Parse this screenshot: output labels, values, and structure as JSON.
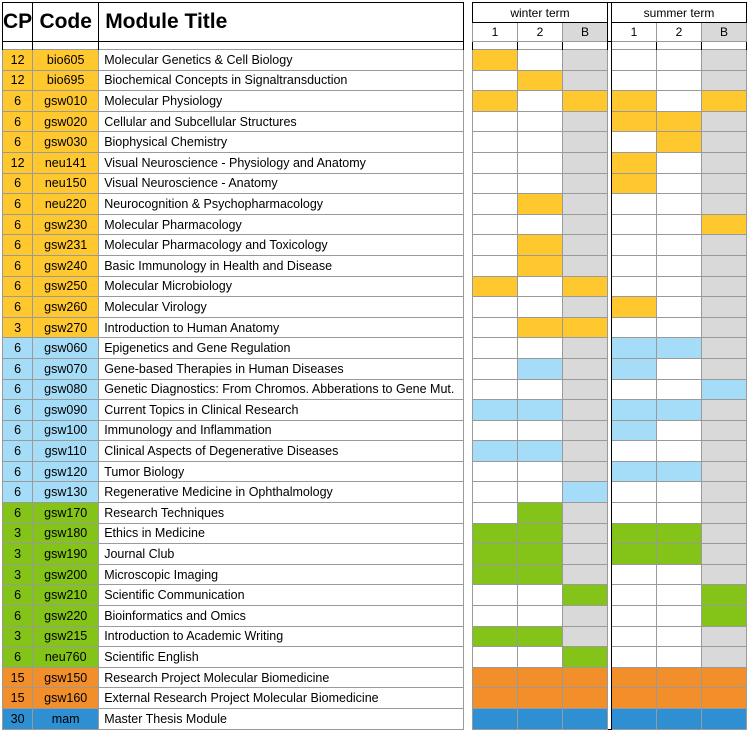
{
  "headers": {
    "cp": "CP",
    "code": "Code",
    "title": "Module Title"
  },
  "terms": {
    "winter": "winter term",
    "summer": "summer term",
    "cols": [
      "1",
      "2",
      "B"
    ]
  },
  "colors": {
    "yellow": "#ffc82f",
    "blue": "#a5dcf7",
    "green": "#84c318",
    "orange": "#f28f2b",
    "darkblue": "#2f8fd3",
    "grey": "#d9d9d9"
  },
  "modules": [
    {
      "cp": "12",
      "code": "bio605",
      "title": "Molecular Genetics & Cell Biology",
      "group": "yellow",
      "schedule": [
        1,
        0,
        0,
        0,
        0,
        0
      ]
    },
    {
      "cp": "12",
      "code": "bio695",
      "title": "Biochemical Concepts in Signaltransduction",
      "group": "yellow",
      "schedule": [
        0,
        1,
        0,
        0,
        0,
        0
      ]
    },
    {
      "cp": "6",
      "code": "gsw010",
      "title": "Molecular Physiology",
      "group": "yellow",
      "schedule": [
        1,
        0,
        1,
        1,
        0,
        1
      ]
    },
    {
      "cp": "6",
      "code": "gsw020",
      "title": "Cellular and Subcellular Structures",
      "group": "yellow",
      "schedule": [
        0,
        0,
        0,
        1,
        1,
        0
      ]
    },
    {
      "cp": "6",
      "code": "gsw030",
      "title": "Biophysical Chemistry",
      "group": "yellow",
      "schedule": [
        0,
        0,
        0,
        0,
        1,
        0
      ]
    },
    {
      "cp": "12",
      "code": "neu141",
      "title": "Visual Neuroscience - Physiology and Anatomy",
      "group": "yellow",
      "schedule": [
        0,
        0,
        0,
        1,
        0,
        0
      ]
    },
    {
      "cp": "6",
      "code": "neu150",
      "title": "Visual Neuroscience - Anatomy",
      "group": "yellow",
      "schedule": [
        0,
        0,
        0,
        1,
        0,
        0
      ]
    },
    {
      "cp": "6",
      "code": "neu220",
      "title": "Neurocognition & Psychopharmacology",
      "group": "yellow",
      "schedule": [
        0,
        1,
        0,
        0,
        0,
        0
      ]
    },
    {
      "cp": "6",
      "code": "gsw230",
      "title": "Molecular Pharmacology",
      "group": "yellow",
      "schedule": [
        0,
        0,
        0,
        0,
        0,
        1
      ]
    },
    {
      "cp": "6",
      "code": "gsw231",
      "title": "Molecular Pharmacology and Toxicology",
      "group": "yellow",
      "schedule": [
        0,
        1,
        0,
        0,
        0,
        0
      ]
    },
    {
      "cp": "6",
      "code": "gsw240",
      "title": "Basic Immunology in Health and Disease",
      "group": "yellow",
      "schedule": [
        0,
        1,
        0,
        0,
        0,
        0
      ]
    },
    {
      "cp": "6",
      "code": "gsw250",
      "title": "Molecular Microbiology",
      "group": "yellow",
      "schedule": [
        1,
        0,
        1,
        0,
        0,
        0
      ]
    },
    {
      "cp": "6",
      "code": "gsw260",
      "title": "Molecular Virology",
      "group": "yellow",
      "schedule": [
        0,
        0,
        0,
        1,
        0,
        0
      ]
    },
    {
      "cp": "3",
      "code": "gsw270",
      "title": "Introduction to Human Anatomy",
      "group": "yellow",
      "schedule": [
        0,
        1,
        1,
        0,
        0,
        0
      ]
    },
    {
      "cp": "6",
      "code": "gsw060",
      "title": "Epigenetics and Gene Regulation",
      "group": "blue",
      "schedule": [
        0,
        0,
        0,
        1,
        1,
        0
      ]
    },
    {
      "cp": "6",
      "code": "gsw070",
      "title": "Gene-based Therapies in Human Diseases",
      "group": "blue",
      "schedule": [
        0,
        1,
        0,
        1,
        0,
        0
      ]
    },
    {
      "cp": "6",
      "code": "gsw080",
      "title": "Genetic Diagnostics: From Chromos. Abberations to Gene Mut.",
      "group": "blue",
      "schedule": [
        0,
        0,
        0,
        0,
        0,
        1
      ]
    },
    {
      "cp": "6",
      "code": "gsw090",
      "title": "Current Topics in Clinical Research",
      "group": "blue",
      "schedule": [
        1,
        1,
        0,
        1,
        1,
        0
      ]
    },
    {
      "cp": "6",
      "code": "gsw100",
      "title": "Immunology and Inflammation",
      "group": "blue",
      "schedule": [
        0,
        0,
        0,
        1,
        0,
        0
      ]
    },
    {
      "cp": "6",
      "code": "gsw110",
      "title": "Clinical Aspects of Degenerative Diseases",
      "group": "blue",
      "schedule": [
        1,
        1,
        0,
        0,
        0,
        0
      ]
    },
    {
      "cp": "6",
      "code": "gsw120",
      "title": "Tumor Biology",
      "group": "blue",
      "schedule": [
        0,
        0,
        0,
        1,
        1,
        0
      ]
    },
    {
      "cp": "6",
      "code": "gsw130",
      "title": "Regenerative Medicine in Ophthalmology",
      "group": "blue",
      "schedule": [
        0,
        0,
        1,
        0,
        0,
        0
      ]
    },
    {
      "cp": "6",
      "code": "gsw170",
      "title": "Research Techniques",
      "group": "green",
      "schedule": [
        0,
        1,
        0,
        0,
        0,
        0
      ]
    },
    {
      "cp": "3",
      "code": "gsw180",
      "title": "Ethics in Medicine",
      "group": "green",
      "schedule": [
        1,
        1,
        0,
        1,
        1,
        0
      ]
    },
    {
      "cp": "3",
      "code": "gsw190",
      "title": "Journal Club",
      "group": "green",
      "schedule": [
        1,
        1,
        0,
        1,
        1,
        0
      ]
    },
    {
      "cp": "3",
      "code": "gsw200",
      "title": "Microscopic Imaging",
      "group": "green",
      "schedule": [
        1,
        1,
        0,
        0,
        0,
        0
      ]
    },
    {
      "cp": "6",
      "code": "gsw210",
      "title": "Scientific Communication",
      "group": "green",
      "schedule": [
        0,
        0,
        1,
        0,
        0,
        1
      ]
    },
    {
      "cp": "6",
      "code": "gsw220",
      "title": "Bioinformatics and Omics",
      "group": "green",
      "schedule": [
        0,
        0,
        0,
        0,
        0,
        1
      ]
    },
    {
      "cp": "3",
      "code": "gsw215",
      "title": "Introduction to Academic Writing",
      "group": "green",
      "schedule": [
        1,
        1,
        0,
        0,
        0,
        0
      ]
    },
    {
      "cp": "6",
      "code": "neu760",
      "title": "Scientific English",
      "group": "green",
      "schedule": [
        0,
        0,
        1,
        0,
        0,
        0
      ]
    },
    {
      "cp": "15",
      "code": "gsw150",
      "title": "Research Project Molecular Biomedicine",
      "group": "orange",
      "schedule": [
        1,
        1,
        1,
        1,
        1,
        1
      ]
    },
    {
      "cp": "15",
      "code": "gsw160",
      "title": "External Research Project Molecular Biomedicine",
      "group": "orange",
      "schedule": [
        1,
        1,
        1,
        1,
        1,
        1
      ]
    },
    {
      "cp": "30",
      "code": "mam",
      "title": "Master Thesis Module",
      "group": "darkblue",
      "schedule": [
        1,
        1,
        1,
        1,
        1,
        1
      ]
    }
  ]
}
